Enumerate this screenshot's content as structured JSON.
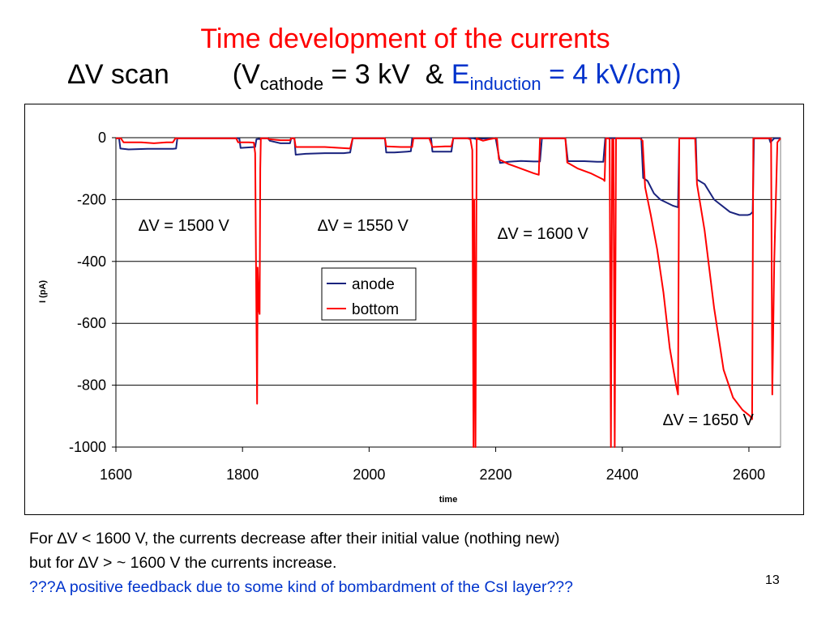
{
  "slide": {
    "title": "Time development of the currents",
    "subtitle": {
      "delta": "∆",
      "scan": "V scan",
      "open": "(V",
      "cathode_sub": "cathode",
      "cathode_val": " = 3 kV  & ",
      "e": "E",
      "induction_sub": "induction",
      "induction_val": " = 4 kV/cm)"
    },
    "notes": {
      "line1": "For ∆V < 1600 V, the currents decrease after their initial value (nothing new)",
      "line2": "but for ∆V > ~ 1600 V the currents increase.",
      "line3": "???A positive feedback due to some kind of bombardment of the CsI layer???"
    },
    "page_number": "13"
  },
  "chart_data": {
    "type": "line",
    "xlabel": "time",
    "ylabel": "I (pA)",
    "xlim": [
      1600,
      2650
    ],
    "ylim": [
      -1000,
      0
    ],
    "x_ticks": [
      1600,
      1800,
      2000,
      2200,
      2400,
      2600
    ],
    "x_tick_labels": [
      "1600",
      "1800",
      "2000",
      "2200",
      "2400",
      "2600"
    ],
    "y_ticks": [
      0,
      -200,
      -400,
      -600,
      -800,
      -1000
    ],
    "y_tick_labels": [
      "0",
      "-200",
      "-400",
      "-600",
      "-800",
      "-1000"
    ],
    "grid": "horizontal",
    "legend_position": "center",
    "annotations": [
      "∆V = 1500 V",
      "∆V = 1550 V",
      "∆V = 1600 V",
      "∆V = 1650 V"
    ],
    "series": [
      {
        "name": "anode",
        "color": "#1a237e",
        "points": [
          [
            1600,
            -2
          ],
          [
            1605,
            -2
          ],
          [
            1607,
            -35
          ],
          [
            1620,
            -38
          ],
          [
            1650,
            -36
          ],
          [
            1690,
            -36
          ],
          [
            1695,
            -35
          ],
          [
            1697,
            -2
          ],
          [
            1720,
            -2
          ],
          [
            1760,
            -2
          ],
          [
            1790,
            -2
          ],
          [
            1795,
            -2
          ],
          [
            1797,
            -33
          ],
          [
            1820,
            -30
          ],
          [
            1822,
            -5
          ],
          [
            1826,
            -4
          ],
          [
            1828,
            -5
          ],
          [
            1830,
            -2
          ],
          [
            1832,
            -2
          ],
          [
            1838,
            -2
          ],
          [
            1840,
            -2
          ],
          [
            1843,
            -10
          ],
          [
            1860,
            -18
          ],
          [
            1875,
            -18
          ],
          [
            1877,
            -2
          ],
          [
            1880,
            -2
          ],
          [
            1882,
            -2
          ],
          [
            1884,
            -55
          ],
          [
            1900,
            -52
          ],
          [
            1930,
            -50
          ],
          [
            1960,
            -50
          ],
          [
            1970,
            -48
          ],
          [
            1974,
            -2
          ],
          [
            2000,
            -2
          ],
          [
            2020,
            -2
          ],
          [
            2025,
            -2
          ],
          [
            2027,
            -48
          ],
          [
            2040,
            -48
          ],
          [
            2060,
            -45
          ],
          [
            2066,
            -44
          ],
          [
            2068,
            -2
          ],
          [
            2090,
            -2
          ],
          [
            2098,
            -2
          ],
          [
            2100,
            -45
          ],
          [
            2120,
            -45
          ],
          [
            2130,
            -45
          ],
          [
            2133,
            -2
          ],
          [
            2150,
            -2
          ],
          [
            2160,
            -2
          ],
          [
            2165,
            -2
          ],
          [
            2170,
            -5
          ],
          [
            2175,
            -4
          ],
          [
            2180,
            -3
          ],
          [
            2190,
            -3
          ],
          [
            2198,
            -2
          ],
          [
            2200,
            -3
          ],
          [
            2207,
            -82
          ],
          [
            2220,
            -78
          ],
          [
            2240,
            -75
          ],
          [
            2260,
            -77
          ],
          [
            2270,
            -77
          ],
          [
            2273,
            -2
          ],
          [
            2300,
            -2
          ],
          [
            2310,
            -2
          ],
          [
            2314,
            -76
          ],
          [
            2340,
            -76
          ],
          [
            2360,
            -78
          ],
          [
            2370,
            -78
          ],
          [
            2373,
            -2
          ],
          [
            2378,
            -2
          ],
          [
            2380,
            -2
          ],
          [
            2385,
            -2
          ],
          [
            2390,
            -2
          ],
          [
            2394,
            -2
          ],
          [
            2400,
            -2
          ],
          [
            2425,
            -2
          ],
          [
            2430,
            -2
          ],
          [
            2433,
            -130
          ],
          [
            2440,
            -140
          ],
          [
            2450,
            -180
          ],
          [
            2460,
            -200
          ],
          [
            2480,
            -220
          ],
          [
            2488,
            -225
          ],
          [
            2490,
            -2
          ],
          [
            2510,
            -2
          ],
          [
            2516,
            -2
          ],
          [
            2518,
            -135
          ],
          [
            2530,
            -150
          ],
          [
            2545,
            -200
          ],
          [
            2570,
            -240
          ],
          [
            2585,
            -250
          ],
          [
            2598,
            -250
          ],
          [
            2602,
            -248
          ],
          [
            2606,
            -240
          ],
          [
            2608,
            -2
          ],
          [
            2620,
            -2
          ],
          [
            2630,
            -2
          ],
          [
            2632,
            -2
          ],
          [
            2634,
            -15
          ],
          [
            2640,
            -2
          ],
          [
            2645,
            -2
          ],
          [
            2650,
            -2
          ]
        ]
      },
      {
        "name": "bottom",
        "color": "#ff0000",
        "points": [
          [
            1600,
            -2
          ],
          [
            1608,
            -2
          ],
          [
            1612,
            -15
          ],
          [
            1640,
            -15
          ],
          [
            1660,
            -18
          ],
          [
            1680,
            -15
          ],
          [
            1690,
            -15
          ],
          [
            1694,
            -2
          ],
          [
            1720,
            -2
          ],
          [
            1760,
            -2
          ],
          [
            1790,
            -2
          ],
          [
            1793,
            -15
          ],
          [
            1810,
            -15
          ],
          [
            1818,
            -16
          ],
          [
            1820,
            -50
          ],
          [
            1823,
            -860
          ],
          [
            1824,
            -420
          ],
          [
            1826,
            -560
          ],
          [
            1827,
            -570
          ],
          [
            1828,
            -100
          ],
          [
            1829,
            -2
          ],
          [
            1840,
            -2
          ],
          [
            1842,
            -5
          ],
          [
            1860,
            -8
          ],
          [
            1875,
            -8
          ],
          [
            1877,
            -2
          ],
          [
            1882,
            -2
          ],
          [
            1884,
            -30
          ],
          [
            1930,
            -30
          ],
          [
            1970,
            -35
          ],
          [
            1974,
            -2
          ],
          [
            2020,
            -2
          ],
          [
            2025,
            -2
          ],
          [
            2027,
            -28
          ],
          [
            2050,
            -30
          ],
          [
            2068,
            -30
          ],
          [
            2070,
            -2
          ],
          [
            2095,
            -2
          ],
          [
            2100,
            -30
          ],
          [
            2120,
            -28
          ],
          [
            2130,
            -28
          ],
          [
            2133,
            -2
          ],
          [
            2155,
            -2
          ],
          [
            2160,
            -5
          ],
          [
            2163,
            -40
          ],
          [
            2165,
            -1000
          ],
          [
            2166,
            -200
          ],
          [
            2168,
            -1000
          ],
          [
            2170,
            -2
          ],
          [
            2180,
            -10
          ],
          [
            2190,
            -5
          ],
          [
            2198,
            -2
          ],
          [
            2200,
            -3
          ],
          [
            2202,
            -2
          ],
          [
            2205,
            -70
          ],
          [
            2220,
            -85
          ],
          [
            2240,
            -100
          ],
          [
            2260,
            -115
          ],
          [
            2268,
            -120
          ],
          [
            2270,
            -2
          ],
          [
            2300,
            -2
          ],
          [
            2310,
            -2
          ],
          [
            2313,
            -80
          ],
          [
            2330,
            -100
          ],
          [
            2350,
            -115
          ],
          [
            2370,
            -135
          ],
          [
            2372,
            -140
          ],
          [
            2374,
            -2
          ],
          [
            2378,
            -2
          ],
          [
            2380,
            -5
          ],
          [
            2382,
            -1000
          ],
          [
            2384,
            -5
          ],
          [
            2386,
            -5
          ],
          [
            2388,
            -1000
          ],
          [
            2390,
            -2
          ],
          [
            2400,
            -2
          ],
          [
            2428,
            -2
          ],
          [
            2432,
            -10
          ],
          [
            2436,
            -160
          ],
          [
            2445,
            -250
          ],
          [
            2455,
            -360
          ],
          [
            2465,
            -500
          ],
          [
            2475,
            -680
          ],
          [
            2485,
            -800
          ],
          [
            2488,
            -830
          ],
          [
            2490,
            -2
          ],
          [
            2510,
            -2
          ],
          [
            2515,
            -2
          ],
          [
            2518,
            -150
          ],
          [
            2530,
            -300
          ],
          [
            2545,
            -550
          ],
          [
            2560,
            -750
          ],
          [
            2575,
            -840
          ],
          [
            2590,
            -880
          ],
          [
            2602,
            -900
          ],
          [
            2605,
            -910
          ],
          [
            2607,
            -2
          ],
          [
            2620,
            -2
          ],
          [
            2630,
            -2
          ],
          [
            2635,
            -2
          ],
          [
            2637,
            -830
          ],
          [
            2640,
            -400
          ],
          [
            2645,
            -15
          ],
          [
            2650,
            -2
          ]
        ]
      }
    ]
  }
}
